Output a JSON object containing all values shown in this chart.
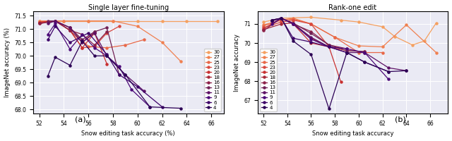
{
  "title_left": "Single layer fine-tuning",
  "title_right": "Rank-one edit",
  "xlabel_left": "Snow editing task accuracy (%)",
  "xlabel_right": "Snow editing task accuracy",
  "ylabel_left": "ImageNet accuracy (%)",
  "ylabel_right": "ImageNet accuracy",
  "layers": [
    30,
    27,
    25,
    23,
    20,
    18,
    16,
    13,
    11,
    9,
    6,
    4
  ],
  "palette_colors": [
    "#f5a060",
    "#f08050",
    "#e86848",
    "#d84840",
    "#c83030",
    "#a82838",
    "#8c2048",
    "#702055",
    "#5c1065",
    "#4c0878",
    "#3c0068",
    "#2c0055"
  ],
  "left_data": {
    "30": {
      "x": [
        52.0,
        53.3,
        54.0,
        56.0,
        58.0,
        60.0,
        62.0,
        64.0,
        66.5
      ],
      "y": [
        71.3,
        71.3,
        71.3,
        71.3,
        71.3,
        71.3,
        71.3,
        71.3,
        71.3
      ]
    },
    "27": {
      "x": [
        52.0,
        53.3,
        54.0,
        56.0,
        58.0,
        60.0,
        62.0,
        63.5
      ],
      "y": [
        71.3,
        71.3,
        71.3,
        71.3,
        71.3,
        71.1,
        70.5,
        69.8
      ]
    },
    "25": {
      "x": [
        52.0,
        53.3,
        54.5,
        56.0,
        57.5,
        59.0,
        60.5
      ],
      "y": [
        71.25,
        71.3,
        71.05,
        70.35,
        70.3,
        70.4,
        70.6
      ]
    },
    "23": {
      "x": [
        52.0,
        53.3,
        54.5,
        55.5,
        56.5,
        57.5,
        58.5
      ],
      "y": [
        71.25,
        71.3,
        70.95,
        70.3,
        70.35,
        70.85,
        71.1
      ]
    },
    "20": {
      "x": [
        52.0,
        53.3,
        54.5,
        55.5,
        56.5,
        57.5
      ],
      "y": [
        71.25,
        71.3,
        70.95,
        70.3,
        70.85,
        69.7
      ]
    },
    "18": {
      "x": [
        52.0,
        53.3,
        54.5,
        55.5,
        56.5
      ],
      "y": [
        71.2,
        71.3,
        70.95,
        70.5,
        70.9
      ]
    },
    "16": {
      "x": [
        52.0,
        53.3,
        54.5,
        55.5,
        56.5,
        57.5
      ],
      "y": [
        71.2,
        71.3,
        70.95,
        70.8,
        70.4,
        70.9
      ]
    },
    "13": {
      "x": [
        52.7,
        53.3,
        54.5,
        55.5,
        56.5,
        57.5,
        58.5
      ],
      "y": [
        71.3,
        71.3,
        71.05,
        70.6,
        70.9,
        71.05,
        69.3
      ]
    },
    "11": {
      "x": [
        52.7,
        53.3,
        54.5,
        55.5,
        56.5,
        57.5,
        59.0,
        60.5
      ],
      "y": [
        71.2,
        71.3,
        71.05,
        70.5,
        70.85,
        70.0,
        69.3,
        68.7
      ]
    },
    "9": {
      "x": [
        52.7,
        53.3,
        54.5,
        55.5,
        56.5,
        57.5,
        58.5,
        59.5,
        61.0
      ],
      "y": [
        70.8,
        71.2,
        70.25,
        70.8,
        70.3,
        70.0,
        69.6,
        68.75,
        68.1
      ]
    },
    "6": {
      "x": [
        52.7,
        53.3,
        54.5,
        56.0,
        57.5,
        58.5,
        60.0,
        62.0
      ],
      "y": [
        70.6,
        71.1,
        70.5,
        70.85,
        70.05,
        69.3,
        68.85,
        68.1
      ]
    },
    "4": {
      "x": [
        52.7,
        53.3,
        54.5,
        55.5,
        56.5,
        57.5,
        59.0,
        61.0,
        63.5
      ],
      "y": [
        69.25,
        69.95,
        69.65,
        70.55,
        70.0,
        70.0,
        69.3,
        68.1,
        68.05
      ]
    }
  },
  "right_data": {
    "30": {
      "x": [
        52.0,
        53.5,
        56.0,
        58.5,
        60.0,
        62.0,
        63.0,
        64.5,
        65.5,
        66.5
      ],
      "y": [
        71.1,
        71.3,
        71.35,
        71.2,
        71.1,
        70.85,
        70.35,
        69.9,
        70.1,
        71.05
      ]
    },
    "27": {
      "x": [
        52.0,
        53.5,
        54.5,
        56.0,
        58.0,
        60.0,
        62.0,
        64.0,
        66.5
      ],
      "y": [
        70.95,
        71.2,
        71.3,
        71.0,
        70.3,
        69.85,
        69.8,
        70.95,
        69.5
      ]
    },
    "25": {
      "x": [
        52.0,
        53.5,
        54.5,
        56.0,
        58.0,
        60.0,
        62.0
      ],
      "y": [
        70.9,
        71.2,
        71.25,
        71.0,
        70.3,
        69.5,
        69.5
      ]
    },
    "23": {
      "x": [
        52.0,
        53.5,
        54.5,
        56.0,
        57.5,
        59.0,
        60.5
      ],
      "y": [
        70.8,
        71.1,
        71.2,
        71.0,
        69.8,
        69.6,
        69.55
      ]
    },
    "20": {
      "x": [
        52.0,
        53.5,
        54.5,
        56.0,
        57.5,
        58.5
      ],
      "y": [
        70.75,
        71.3,
        71.0,
        70.0,
        69.8,
        67.95
      ]
    },
    "18": {
      "x": [
        52.0,
        53.5,
        54.5,
        56.0,
        57.5
      ],
      "y": [
        70.7,
        71.0,
        71.05,
        70.25,
        69.8
      ]
    },
    "16": {
      "x": [
        52.0,
        53.5,
        54.5,
        56.0,
        57.5,
        59.0
      ],
      "y": [
        70.65,
        71.3,
        71.0,
        70.6,
        69.9,
        69.7
      ]
    },
    "13": {
      "x": [
        52.7,
        53.5,
        54.5,
        56.0,
        57.5,
        59.0,
        60.5
      ],
      "y": [
        71.2,
        71.3,
        71.05,
        70.5,
        69.9,
        69.6,
        69.55
      ]
    },
    "11": {
      "x": [
        52.7,
        53.5,
        54.5,
        56.0,
        57.5,
        59.0,
        60.5,
        62.5,
        64.0
      ],
      "y": [
        71.15,
        71.3,
        71.0,
        70.3,
        69.8,
        69.5,
        69.5,
        68.7,
        68.55
      ]
    },
    "9": {
      "x": [
        52.7,
        53.5,
        54.5,
        56.0,
        57.5,
        59.0,
        60.5,
        62.5
      ],
      "y": [
        71.0,
        71.3,
        71.0,
        70.2,
        69.8,
        69.7,
        69.5,
        68.1
      ]
    },
    "6": {
      "x": [
        52.7,
        53.5,
        54.5,
        56.0,
        57.5,
        59.0,
        60.5,
        62.5
      ],
      "y": [
        71.2,
        71.3,
        70.25,
        70.05,
        69.8,
        69.5,
        69.0,
        68.5
      ]
    },
    "4": {
      "x": [
        52.7,
        53.5,
        54.5,
        56.0,
        57.5,
        59.0,
        60.5,
        62.5,
        64.0
      ],
      "y": [
        71.2,
        71.3,
        70.1,
        69.4,
        66.55,
        69.5,
        69.0,
        68.5,
        68.55
      ]
    }
  },
  "xlim_left": [
    51.5,
    67.0
  ],
  "ylim_left": [
    67.85,
    71.65
  ],
  "xlim_right": [
    51.5,
    67.5
  ],
  "ylim_right": [
    66.3,
    71.65
  ],
  "xticks_left": [
    52,
    54,
    56,
    58,
    60,
    62,
    64,
    66
  ],
  "xticks_right": [
    52,
    54,
    56,
    58,
    60,
    62,
    64,
    66
  ],
  "yticks_left": [
    68.0,
    68.5,
    69.0,
    69.5,
    70.0,
    70.5,
    71.0,
    71.5
  ],
  "yticks_right": [
    67,
    68,
    69,
    70,
    71
  ],
  "bg_color": "#eaeaf4",
  "legend_loc_left": "lower right",
  "legend_loc_right": "lower left"
}
